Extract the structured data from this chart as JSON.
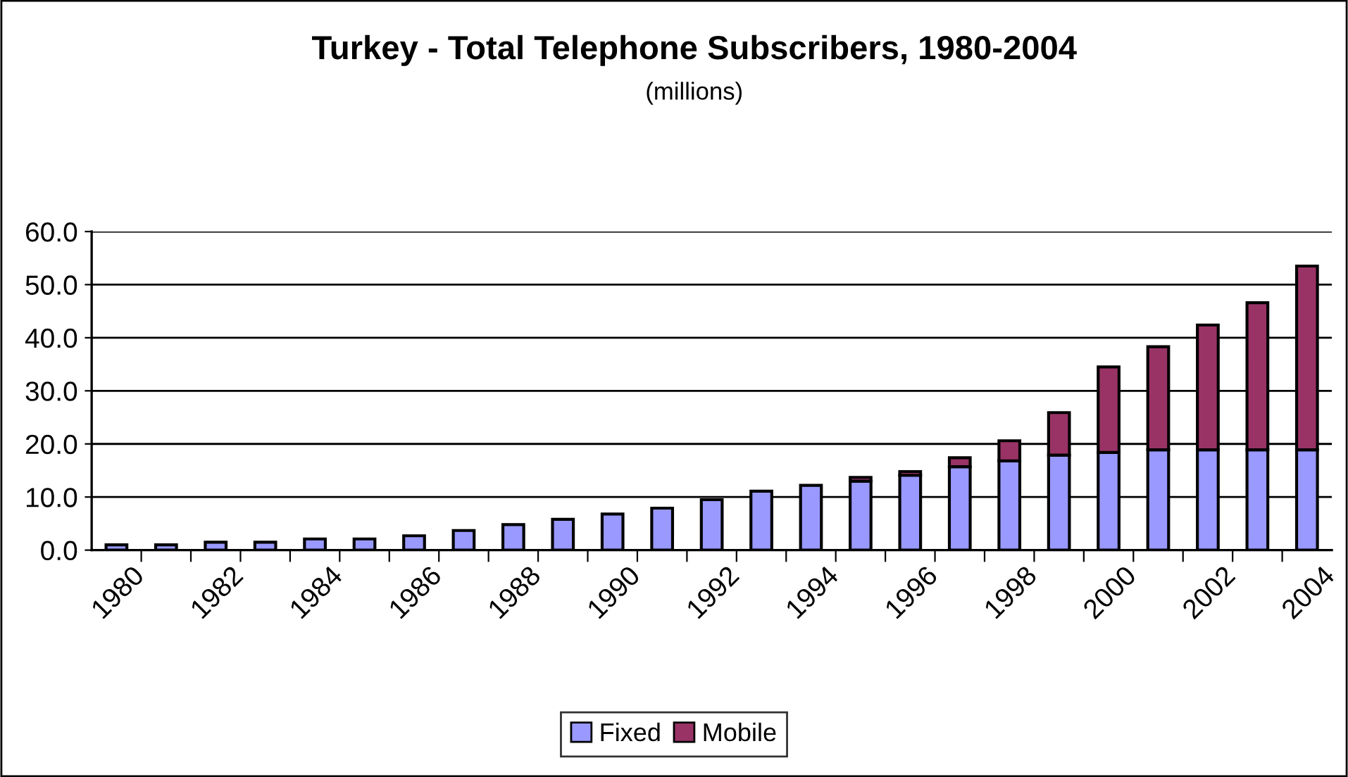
{
  "chart_data": {
    "type": "bar",
    "title": "Turkey - Total Telephone Subscribers, 1980-2004",
    "subtitle": "(millions)",
    "categories": [
      "1980",
      null,
      "1982",
      null,
      "1984",
      null,
      "1986",
      null,
      "1988",
      null,
      "1990",
      null,
      "1992",
      null,
      "1994",
      null,
      "1996",
      null,
      "1998",
      null,
      "2000",
      null,
      "2002",
      null,
      "2004"
    ],
    "stacked": true,
    "series": [
      {
        "name": "Fixed",
        "color": "#9999ff",
        "values": [
          1.0,
          1.0,
          1.5,
          1.5,
          2.1,
          2.1,
          2.7,
          3.7,
          4.8,
          5.8,
          6.8,
          7.9,
          9.5,
          11.1,
          12.2,
          13.0,
          14.1,
          15.7,
          16.8,
          17.9,
          18.4,
          18.9,
          18.9,
          18.9,
          18.9
        ]
      },
      {
        "name": "Mobile",
        "color": "#993366",
        "values": [
          null,
          null,
          null,
          null,
          null,
          null,
          null,
          null,
          null,
          null,
          null,
          null,
          null,
          null,
          null,
          0.7,
          0.7,
          1.7,
          3.8,
          8.0,
          16.1,
          19.4,
          23.5,
          27.7,
          34.6
        ]
      }
    ],
    "ylim": [
      0,
      60
    ],
    "yticks": [
      {
        "value": 0,
        "label": "0.0"
      },
      {
        "value": 10,
        "label": "10.0"
      },
      {
        "value": 20,
        "label": "20.0"
      },
      {
        "value": 30,
        "label": "30.0"
      },
      {
        "value": 40,
        "label": "40.0"
      },
      {
        "value": 50,
        "label": "50.0"
      },
      {
        "value": 60,
        "label": "60.0"
      }
    ],
    "grid": "y",
    "legend": "bottom"
  }
}
